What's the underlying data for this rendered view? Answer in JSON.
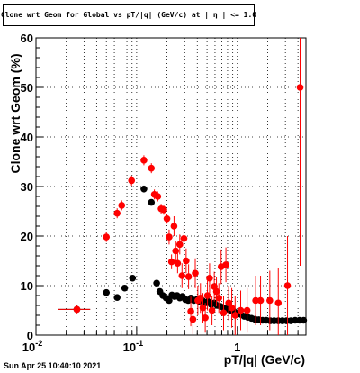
{
  "title": "Clone wrt Geom for Global vs pT/|q| (GeV/c) at | η | <= 1.0",
  "timestamp": "Sun Apr 25 10:40:10 2021",
  "colors": {
    "series_black": "#000000",
    "series_red": "#ff0000",
    "grid": "#000000"
  },
  "chart_data": {
    "type": "scatter",
    "xlabel": "pT/|q| (GeV/c)",
    "ylabel": "Clone wrt Geom (%)",
    "xscale": "log",
    "xlim": [
      0.01,
      4.8
    ],
    "ylim": [
      0,
      60
    ],
    "grid": true,
    "xticks": [
      {
        "value": 0.01,
        "label": "10",
        "exp": "-2"
      },
      {
        "value": 0.1,
        "label": "10",
        "exp": "-1"
      },
      {
        "value": 1,
        "label": "1",
        "exp": ""
      }
    ],
    "yticks": [
      0,
      10,
      20,
      30,
      40,
      50,
      60
    ],
    "series": [
      {
        "color": "black",
        "points": [
          [
            0.0255,
            5.2,
            0.009,
            0.5
          ],
          [
            0.05,
            8.6,
            0.004,
            0.5
          ],
          [
            0.064,
            7.6,
            0.004,
            0.5
          ],
          [
            0.076,
            9.5,
            0.004,
            0.5
          ],
          [
            0.091,
            11.5,
            0.005,
            0.6
          ],
          [
            0.118,
            29.5,
            0.003,
            0.7
          ],
          [
            0.14,
            26.8,
            0.003,
            0.6
          ],
          [
            0.158,
            10.5,
            0.003,
            0.6
          ],
          [
            0.17,
            8.8,
            0.003,
            0.5
          ],
          [
            0.182,
            8.0,
            0.003,
            0.5
          ],
          [
            0.196,
            7.5,
            0.003,
            0.5
          ],
          [
            0.21,
            7.0,
            0.003,
            0.5
          ],
          [
            0.224,
            8.1,
            0.003,
            0.4
          ],
          [
            0.238,
            7.8,
            0.003,
            0.4
          ],
          [
            0.252,
            8.0,
            0.003,
            0.4
          ],
          [
            0.268,
            7.5,
            0.003,
            0.4
          ],
          [
            0.285,
            7.8,
            0.003,
            0.4
          ],
          [
            0.305,
            7.2,
            0.003,
            0.4
          ],
          [
            0.325,
            7.0,
            0.003,
            0.4
          ],
          [
            0.345,
            7.5,
            0.004,
            0.4
          ],
          [
            0.37,
            7.0,
            0.004,
            0.4
          ],
          [
            0.395,
            7.2,
            0.004,
            0.4
          ],
          [
            0.42,
            6.8,
            0.004,
            0.4
          ],
          [
            0.45,
            7.0,
            0.004,
            0.4
          ],
          [
            0.48,
            6.5,
            0.005,
            0.4
          ],
          [
            0.51,
            6.8,
            0.005,
            0.4
          ],
          [
            0.55,
            6.2,
            0.005,
            0.4
          ],
          [
            0.59,
            6.5,
            0.006,
            0.4
          ],
          [
            0.63,
            6.0,
            0.006,
            0.4
          ],
          [
            0.68,
            5.8,
            0.007,
            0.4
          ],
          [
            0.73,
            5.5,
            0.007,
            0.4
          ],
          [
            0.79,
            5.3,
            0.008,
            0.4
          ],
          [
            0.85,
            5.0,
            0.008,
            0.4
          ],
          [
            0.92,
            4.8,
            0.009,
            0.4
          ],
          [
            1.0,
            4.5,
            0.01,
            0.4
          ],
          [
            1.08,
            4.2,
            0.01,
            0.4
          ],
          [
            1.17,
            3.8,
            0.01,
            0.4
          ],
          [
            1.27,
            3.6,
            0.01,
            0.4
          ],
          [
            1.38,
            3.4,
            0.01,
            0.4
          ],
          [
            1.5,
            3.2,
            0.01,
            0.4
          ],
          [
            1.63,
            3.1,
            0.02,
            0.4
          ],
          [
            1.78,
            3.0,
            0.02,
            0.4
          ],
          [
            1.94,
            3.0,
            0.02,
            0.4
          ],
          [
            2.12,
            2.9,
            0.02,
            0.4
          ],
          [
            2.32,
            2.9,
            0.02,
            0.4
          ],
          [
            2.55,
            2.9,
            0.03,
            0.4
          ],
          [
            2.8,
            2.9,
            0.03,
            0.4
          ],
          [
            3.08,
            2.9,
            0.03,
            0.4
          ],
          [
            3.4,
            2.9,
            0.03,
            0.4
          ],
          [
            3.75,
            3.0,
            0.04,
            0.4
          ],
          [
            4.15,
            3.0,
            0.04,
            0.4
          ],
          [
            4.55,
            3.0,
            0.05,
            0.4
          ]
        ]
      },
      {
        "color": "red",
        "points": [
          [
            0.0255,
            5.2,
            0.009,
            0.8
          ],
          [
            0.05,
            19.8,
            0.004,
            1.0
          ],
          [
            0.064,
            24.6,
            0.003,
            1.0
          ],
          [
            0.071,
            26.2,
            0.003,
            1.0
          ],
          [
            0.089,
            31.2,
            0.004,
            1.0
          ],
          [
            0.118,
            35.3,
            0.003,
            1.0
          ],
          [
            0.14,
            33.7,
            0.003,
            1.0
          ],
          [
            0.15,
            28.4,
            0.003,
            1.0
          ],
          [
            0.162,
            28.0,
            0.003,
            1.0
          ],
          [
            0.175,
            25.5,
            0.003,
            1.0
          ],
          [
            0.186,
            25.3,
            0.003,
            1.0
          ],
          [
            0.2,
            23.5,
            0.003,
            1.0
          ],
          [
            0.21,
            19.8,
            0.003,
            1.5
          ],
          [
            0.222,
            14.8,
            0.003,
            1.5
          ],
          [
            0.235,
            22.0,
            0.003,
            2.0
          ],
          [
            0.244,
            17.0,
            0.003,
            2.0
          ],
          [
            0.255,
            14.5,
            0.003,
            2.0
          ],
          [
            0.268,
            18.3,
            0.003,
            2.0
          ],
          [
            0.282,
            12.0,
            0.003,
            2.5
          ],
          [
            0.295,
            19.5,
            0.003,
            2.5
          ],
          [
            0.31,
            15.0,
            0.003,
            2.5
          ],
          [
            0.328,
            11.8,
            0.003,
            2.5
          ],
          [
            0.345,
            4.8,
            0.004,
            3.0
          ],
          [
            0.362,
            3.2,
            0.004,
            3.0
          ],
          [
            0.382,
            12.5,
            0.004,
            3.0
          ],
          [
            0.405,
            7.0,
            0.004,
            3.0
          ],
          [
            0.43,
            7.5,
            0.004,
            3.0
          ],
          [
            0.455,
            5.5,
            0.005,
            3.0
          ],
          [
            0.48,
            3.5,
            0.005,
            3.0
          ],
          [
            0.505,
            8.0,
            0.005,
            3.0
          ],
          [
            0.53,
            11.5,
            0.005,
            3.0
          ],
          [
            0.56,
            5.0,
            0.005,
            3.0
          ],
          [
            0.59,
            9.8,
            0.006,
            3.0
          ],
          [
            0.62,
            8.8,
            0.006,
            3.0
          ],
          [
            0.655,
            7.5,
            0.006,
            3.0
          ],
          [
            0.69,
            13.8,
            0.007,
            3.5
          ],
          [
            0.73,
            4.5,
            0.007,
            3.5
          ],
          [
            0.77,
            14.2,
            0.008,
            3.5
          ],
          [
            0.82,
            6.5,
            0.008,
            3.5
          ],
          [
            0.88,
            5.5,
            0.009,
            4.0
          ],
          [
            0.95,
            4.0,
            0.009,
            4.0
          ],
          [
            1.08,
            5.0,
            0.01,
            4.0
          ],
          [
            1.25,
            5.0,
            0.01,
            4.5
          ],
          [
            1.52,
            7.0,
            0.02,
            5.0
          ],
          [
            1.7,
            7.0,
            0.02,
            5.0
          ],
          [
            2.1,
            7.0,
            0.02,
            6.0
          ],
          [
            2.55,
            6.5,
            0.03,
            7.0
          ],
          [
            3.15,
            10.0,
            0.03,
            10.0
          ],
          [
            4.2,
            50.0,
            0.04,
            36.0
          ]
        ]
      }
    ]
  }
}
